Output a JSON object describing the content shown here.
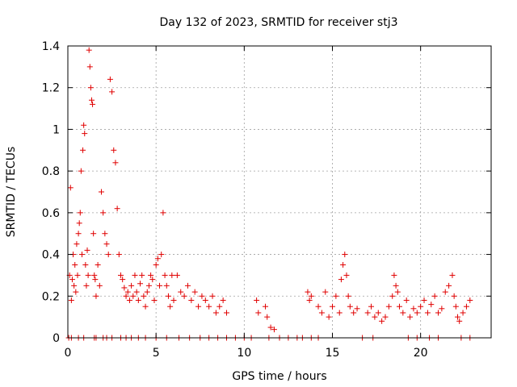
{
  "chart_data": {
    "type": "scatter",
    "title": "Day 132 of 2023, SRMTID for receiver stj3",
    "xlabel": "GPS time / hours",
    "ylabel": "SRMTID / TECUs",
    "xlim": [
      0,
      24
    ],
    "ylim": [
      0,
      1.4
    ],
    "xticks": [
      0,
      5,
      10,
      15,
      20
    ],
    "xtick_labels": [
      "0",
      "5",
      "10",
      "15",
      "20"
    ],
    "yticks": [
      0,
      0.2,
      0.4,
      0.6,
      0.8,
      1.0,
      1.2,
      1.4
    ],
    "ytick_labels": [
      "0",
      "0.2",
      "0.4",
      "0.6",
      "0.8",
      "1",
      "1.2",
      "1.4"
    ],
    "grid": true,
    "marker": "+",
    "marker_color": "#e00000",
    "series": [
      {
        "name": "SRMTID",
        "x": [
          0.1,
          0.15,
          0.2,
          0.25,
          0.3,
          0.35,
          0.4,
          0.45,
          0.5,
          0.55,
          0.6,
          0.65,
          0.7,
          0.75,
          0.8,
          0.85,
          0.9,
          0.95,
          1.0,
          1.05,
          1.1,
          1.15,
          1.2,
          1.25,
          1.3,
          1.35,
          1.4,
          1.45,
          1.5,
          1.55,
          1.6,
          1.7,
          1.8,
          1.9,
          2.0,
          2.1,
          2.2,
          2.3,
          2.4,
          2.5,
          2.6,
          2.7,
          2.8,
          2.9,
          3.0,
          3.1,
          3.2,
          3.3,
          3.4,
          3.5,
          3.6,
          3.7,
          3.8,
          3.9,
          4.0,
          4.1,
          4.2,
          4.3,
          4.4,
          4.5,
          4.6,
          4.7,
          4.8,
          4.9,
          5.0,
          5.1,
          5.2,
          5.3,
          5.4,
          5.5,
          5.6,
          5.7,
          5.8,
          5.9,
          6.0,
          6.2,
          6.4,
          6.6,
          6.8,
          7.0,
          7.2,
          7.4,
          7.6,
          7.8,
          8.0,
          8.2,
          8.4,
          8.6,
          8.8,
          9.0,
          10.7,
          10.8,
          11.2,
          11.3,
          11.5,
          11.7,
          13.6,
          13.7,
          13.8,
          14.2,
          14.4,
          14.6,
          14.8,
          15.0,
          15.2,
          15.4,
          15.5,
          15.6,
          15.7,
          15.8,
          15.9,
          16.0,
          16.2,
          16.4,
          17.0,
          17.2,
          17.4,
          17.6,
          17.8,
          18.0,
          18.2,
          18.4,
          18.5,
          18.6,
          18.7,
          18.8,
          19.0,
          19.2,
          19.4,
          19.6,
          19.8,
          20.0,
          20.2,
          20.4,
          20.6,
          20.8,
          21.0,
          21.2,
          21.4,
          21.6,
          21.8,
          21.9,
          22.0,
          22.1,
          22.2,
          22.4,
          22.6,
          22.8,
          0.05,
          0.2,
          0.6,
          0.9,
          1.5,
          1.6,
          2.0,
          2.2,
          2.5,
          3.0,
          3.3,
          3.6,
          4.0,
          4.4,
          5.0,
          5.6,
          6.3,
          6.9,
          7.5,
          8.0,
          8.5,
          9.0,
          9.5,
          10.0,
          10.4,
          11.4,
          12.0,
          12.5,
          13.0,
          13.3,
          13.8,
          14.2,
          16.7,
          17.3,
          19.3,
          19.8,
          20.5,
          21.0,
          22.3,
          22.8
        ],
        "y": [
          0.3,
          0.72,
          0.18,
          0.28,
          0.4,
          0.25,
          0.35,
          0.22,
          0.45,
          0.3,
          0.5,
          0.55,
          0.6,
          0.8,
          0.4,
          0.9,
          1.02,
          0.98,
          0.35,
          0.25,
          0.42,
          0.3,
          1.38,
          1.3,
          1.2,
          1.14,
          1.12,
          0.5,
          0.3,
          0.28,
          0.2,
          0.35,
          0.25,
          0.7,
          0.6,
          0.5,
          0.45,
          0.4,
          1.24,
          1.18,
          0.9,
          0.84,
          0.62,
          0.4,
          0.3,
          0.28,
          0.24,
          0.2,
          0.22,
          0.18,
          0.25,
          0.2,
          0.3,
          0.22,
          0.18,
          0.26,
          0.3,
          0.2,
          0.15,
          0.22,
          0.25,
          0.3,
          0.28,
          0.18,
          0.35,
          0.38,
          0.25,
          0.4,
          0.6,
          0.3,
          0.25,
          0.2,
          0.15,
          0.3,
          0.18,
          0.3,
          0.22,
          0.2,
          0.25,
          0.18,
          0.22,
          0.15,
          0.2,
          0.18,
          0.15,
          0.2,
          0.12,
          0.15,
          0.18,
          0.12,
          0.18,
          0.12,
          0.15,
          0.1,
          0.05,
          0.04,
          0.22,
          0.18,
          0.2,
          0.15,
          0.12,
          0.22,
          0.1,
          0.15,
          0.2,
          0.12,
          0.28,
          0.35,
          0.4,
          0.3,
          0.2,
          0.15,
          0.12,
          0.14,
          0.12,
          0.15,
          0.1,
          0.12,
          0.08,
          0.1,
          0.15,
          0.2,
          0.3,
          0.25,
          0.22,
          0.15,
          0.12,
          0.18,
          0.1,
          0.14,
          0.12,
          0.15,
          0.18,
          0.12,
          0.16,
          0.2,
          0.12,
          0.14,
          0.22,
          0.25,
          0.3,
          0.2,
          0.15,
          0.1,
          0.08,
          0.12,
          0.15,
          0.18,
          0,
          0,
          0,
          0,
          0,
          0,
          0,
          0,
          0,
          0,
          0,
          0,
          0,
          0,
          0,
          0,
          0,
          0,
          0,
          0,
          0,
          0,
          0,
          0,
          0,
          0,
          0,
          0,
          0,
          0,
          0,
          0,
          0,
          0,
          0,
          0,
          0,
          0,
          0,
          0
        ]
      }
    ]
  }
}
